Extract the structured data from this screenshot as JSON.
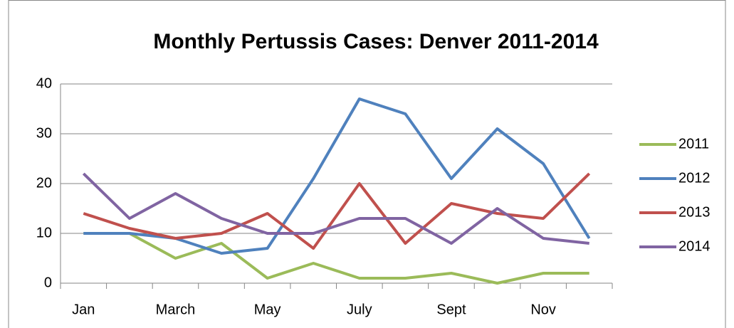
{
  "chart_data": {
    "type": "line",
    "title": "Monthly Pertussis Cases: Denver 2011-2014",
    "categories": [
      "Jan",
      null,
      "March",
      null,
      "May",
      null,
      "July",
      null,
      "Sept",
      null,
      "Nov",
      null
    ],
    "series": [
      {
        "name": "2011",
        "color": "#9bbb59",
        "values": [
          10,
          10,
          5,
          8,
          1,
          4,
          1,
          1,
          2,
          0,
          2,
          2
        ]
      },
      {
        "name": "2012",
        "color": "#4f81bd",
        "values": [
          10,
          10,
          9,
          6,
          7,
          21,
          37,
          34,
          21,
          31,
          24,
          9
        ]
      },
      {
        "name": "2013",
        "color": "#c0504d",
        "values": [
          14,
          11,
          9,
          10,
          14,
          7,
          20,
          8,
          16,
          14,
          13,
          22
        ]
      },
      {
        "name": "2014",
        "color": "#8064a2",
        "values": [
          22,
          13,
          18,
          13,
          10,
          10,
          13,
          13,
          8,
          15,
          9,
          8
        ]
      }
    ],
    "ylim": [
      0,
      40
    ],
    "yticks": [
      0,
      10,
      20,
      30,
      40
    ],
    "grid": true,
    "legend": "right"
  }
}
